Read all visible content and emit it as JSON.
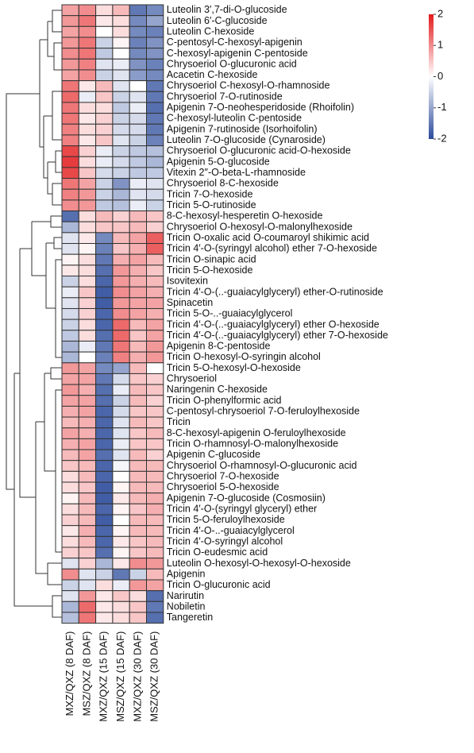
{
  "chart_data": {
    "type": "heatmap",
    "rows": [
      "Luteolin 3′,7-di-O-glucoside",
      "Luteolin 6′-C-glucoside",
      "Luteolin C-hexoside",
      "C-pentosyl-C-hexosyl-apigenin",
      "C-hexosyl-apigenin C-pentoside",
      "Chrysoeriol O-glucuronic acid",
      "Acacetin C-hexoside",
      "Chrysoeriol C-hexosyl-O-rhamnoside",
      "Chrysoeriol 7-O-rutinoside",
      "Apigenin 7-O-neohesperidoside (Rhoifolin)",
      "C-hexosyl-luteolin C-pentoside",
      "Apigenin 7-rutinoside (Isorhoifolin)",
      "Luteolin 7-O-glucoside (Cynaroside)",
      "Chrysoeriol O-glucuronic acid-O-hexoside",
      "Apigenin 5-O-glucoside",
      "Vitexin 2″-O-beta-L-rhamnoside",
      "Chrysoeriol 8-C-hexoside",
      "Tricin 7-O-hexoside",
      "Tricin 5-O-rutinoside",
      "8-C-hexosyl-hesperetin O-hexoside",
      "Chrysoeriol O-hexosyl-O-malonylhexoside",
      "Tricin O-oxalic acid O-coumaroyl shikimic acid",
      "Tricin 4′-O-(syringyl alcohol) ether 7-O-hexoside",
      "Tricin O-sinapic acid",
      "Tricin 5-O-hexoside",
      "Isovitexin",
      "Tricin 4′-O-(..-guaiacylglyceryl) ether-O-rutinoside",
      "Spinacetin",
      "Tricin 5-O-..-guaiacylglycerol",
      "Tricin 4′-O-(..-guaiacylglyceryl) ether O-hexoside",
      "Tricin 4′-O-(..-guaiacylglyceryl) ether 7-O-hexoside",
      "Apigenin 8-C-pentoside",
      "Tricin O-hexosyl-O-syringin alcohol",
      "Tricin 5-O-hexosyl-O-hexoside",
      "Chrysoeriol",
      "Naringenin C-hexoside",
      "Tricin O-phenylformic acid",
      "C-pentosyl-chrysoeriol 7-O-feruloylhexoside",
      "Tricin",
      "8-C-hexosyl-apigenin O-feruloylhexoside",
      "Tricin O-rhamnosyl-O-malonylhexoside",
      "Apigenin C-glucoside",
      "Chrysoeriol O-rhamnosyl-O-glucuronic acid",
      "Chrysoeriol 7-O-hexoside",
      "Chrysoeriol 5-O-hexoside",
      "Apigenin 7-O-glucoside (Cosmosiin)",
      "Tricin 4′-O-(syringyl glyceryl) ether",
      "Tricin 5-O-feruloylhexoside",
      "Tricin 4′-O-..-guaiacylglycerol",
      "Tricin 4′-O-syringyl alcohol",
      "Tricin O-eudesmic acid",
      "Luteolin O-hexosyl-O-hexosyl-O-hexoside",
      "Apigenin",
      "Tricin O-glucuronic acid",
      "Narirutin",
      "Nobiletin",
      "Tangeretin"
    ],
    "columns": [
      "MXZ/QXZ (8 DAF)",
      "MSZ/QXZ (8 DAF)",
      "MXZ/QXZ (15 DAF)",
      "MSZ/QXZ (15 DAF)",
      "MXZ/QXZ (30 DAF)",
      "MSZ/QXZ (30 DAF)"
    ],
    "values": [
      [
        0.8,
        1.0,
        0.3,
        0.6,
        -1.5,
        -1.3
      ],
      [
        0.9,
        1.2,
        0.2,
        0.3,
        -1.3,
        -1.0
      ],
      [
        0.8,
        1.0,
        0,
        0.3,
        -1.3,
        -1.4
      ],
      [
        0.9,
        1.2,
        -0.5,
        0.1,
        -1.4,
        -1.2
      ],
      [
        1.0,
        1.2,
        -0.6,
        0,
        -1.3,
        -1.2
      ],
      [
        0.9,
        1.1,
        -0.3,
        -0.2,
        -1.2,
        -1.4
      ],
      [
        0.8,
        1.0,
        -0.5,
        -0.3,
        -1.1,
        -1.3
      ],
      [
        1.2,
        0.2,
        0.6,
        -0.3,
        0,
        -1.5
      ],
      [
        1.3,
        -0.2,
        0.5,
        -0.5,
        -0.3,
        -1.5
      ],
      [
        1.2,
        0.3,
        0.3,
        -0.6,
        -0.2,
        -1.6
      ],
      [
        1.2,
        0.2,
        0.4,
        -0.5,
        -0.4,
        -1.5
      ],
      [
        1.1,
        0.3,
        0.4,
        -0.4,
        -0.4,
        -1.5
      ],
      [
        1.1,
        0.2,
        0.5,
        -0.3,
        -0.5,
        -1.4
      ],
      [
        1.6,
        0.4,
        -0.2,
        -0.5,
        -0.6,
        -0.7
      ],
      [
        1.7,
        0.3,
        -0.2,
        -0.4,
        -0.6,
        -0.8
      ],
      [
        1.6,
        0.5,
        -0.4,
        -0.5,
        -0.6,
        -0.6
      ],
      [
        1.2,
        0.8,
        -0.5,
        -1.2,
        -0.2,
        -0.3
      ],
      [
        1.1,
        0.9,
        -0.5,
        -0.8,
        -0.3,
        -0.4
      ],
      [
        1.0,
        0.9,
        -0.6,
        -0.7,
        -0.2,
        -0.5
      ],
      [
        -1.6,
        0.3,
        0.6,
        0.4,
        0.6,
        0.5
      ],
      [
        -0.8,
        0.3,
        0.5,
        0.5,
        0.6,
        0.4
      ],
      [
        -0.3,
        0.2,
        -1.3,
        0.6,
        0.8,
        1.4
      ],
      [
        -0.3,
        0.1,
        -1.4,
        0.5,
        0.7,
        1.4
      ],
      [
        0.1,
        0.3,
        -1.5,
        0.7,
        0.8,
        0.6
      ],
      [
        0.2,
        0.3,
        -1.6,
        0.9,
        0.7,
        0.5
      ],
      [
        -0.5,
        0.3,
        -1.7,
        0.9,
        0.7,
        0.6
      ],
      [
        -0.2,
        0.5,
        -1.8,
        1.0,
        0.8,
        0.7
      ],
      [
        -0.3,
        0.4,
        -1.8,
        0.9,
        0.8,
        0.8
      ],
      [
        -0.4,
        0.4,
        -1.7,
        1.0,
        0.8,
        0.7
      ],
      [
        -0.5,
        0.3,
        -1.7,
        1.3,
        0.6,
        0.8
      ],
      [
        -0.6,
        0.3,
        -1.6,
        1.3,
        0.5,
        0.8
      ],
      [
        -0.8,
        -0.2,
        -1.5,
        1.2,
        0.6,
        0.9
      ],
      [
        -0.8,
        0,
        -1.4,
        1.1,
        0.7,
        0.9
      ],
      [
        0.9,
        0.8,
        -1.3,
        -1.0,
        0.6,
        0
      ],
      [
        0.8,
        0.8,
        -1.5,
        -0.4,
        0.5,
        0.4
      ],
      [
        0.9,
        0.7,
        -1.6,
        -0.2,
        0.6,
        0.5
      ],
      [
        0.8,
        0.8,
        -1.6,
        -0.5,
        0.6,
        0.4
      ],
      [
        0.7,
        0.8,
        -1.7,
        -0.4,
        0.5,
        0.5
      ],
      [
        0.6,
        0.7,
        -1.7,
        -0.3,
        0.6,
        0.5
      ],
      [
        0.8,
        0.7,
        -1.7,
        -0.3,
        0.5,
        0.6
      ],
      [
        0.7,
        0.8,
        -1.7,
        -0.2,
        0.5,
        0.5
      ],
      [
        0.6,
        0.8,
        -1.6,
        -0.3,
        0.6,
        0.4
      ],
      [
        0.5,
        0.6,
        -1.7,
        -0.1,
        0.6,
        0.6
      ],
      [
        0.3,
        0.6,
        -1.7,
        0,
        0.6,
        0.6
      ],
      [
        0.3,
        0.5,
        -1.8,
        0.1,
        0.6,
        0.6
      ],
      [
        0.1,
        0.6,
        -1.8,
        0.2,
        0.6,
        0.7
      ],
      [
        0.3,
        0.6,
        -1.7,
        0.1,
        0.5,
        0.7
      ],
      [
        0.4,
        0.6,
        -1.8,
        0,
        0.6,
        0.6
      ],
      [
        0.2,
        0.7,
        -1.7,
        0.1,
        0.6,
        0.6
      ],
      [
        0.3,
        0.6,
        -1.7,
        0.2,
        0.5,
        0.6
      ],
      [
        0.4,
        0.5,
        -1.6,
        0.1,
        0.5,
        0.6
      ],
      [
        -0.3,
        0.4,
        -0.8,
        0.2,
        1.0,
        0.9
      ],
      [
        1.0,
        -0.3,
        -0.5,
        -1.5,
        -0.5,
        0.6
      ],
      [
        -0.5,
        -0.3,
        0.3,
        -0.2,
        0.9,
        0.8
      ],
      [
        -0.3,
        0.9,
        0.2,
        0.5,
        0.3,
        -1.6
      ],
      [
        -0.8,
        1.3,
        0.2,
        0.3,
        0.5,
        -1.5
      ],
      [
        -0.7,
        1.2,
        0.2,
        0.3,
        0.5,
        -1.6
      ]
    ],
    "clim": [
      -2,
      2
    ],
    "colorbar_ticks": [
      2,
      1,
      0,
      -1,
      -2
    ],
    "colors": [
      "#2b4b9b",
      "#ffffff",
      "#e31a1c"
    ]
  }
}
